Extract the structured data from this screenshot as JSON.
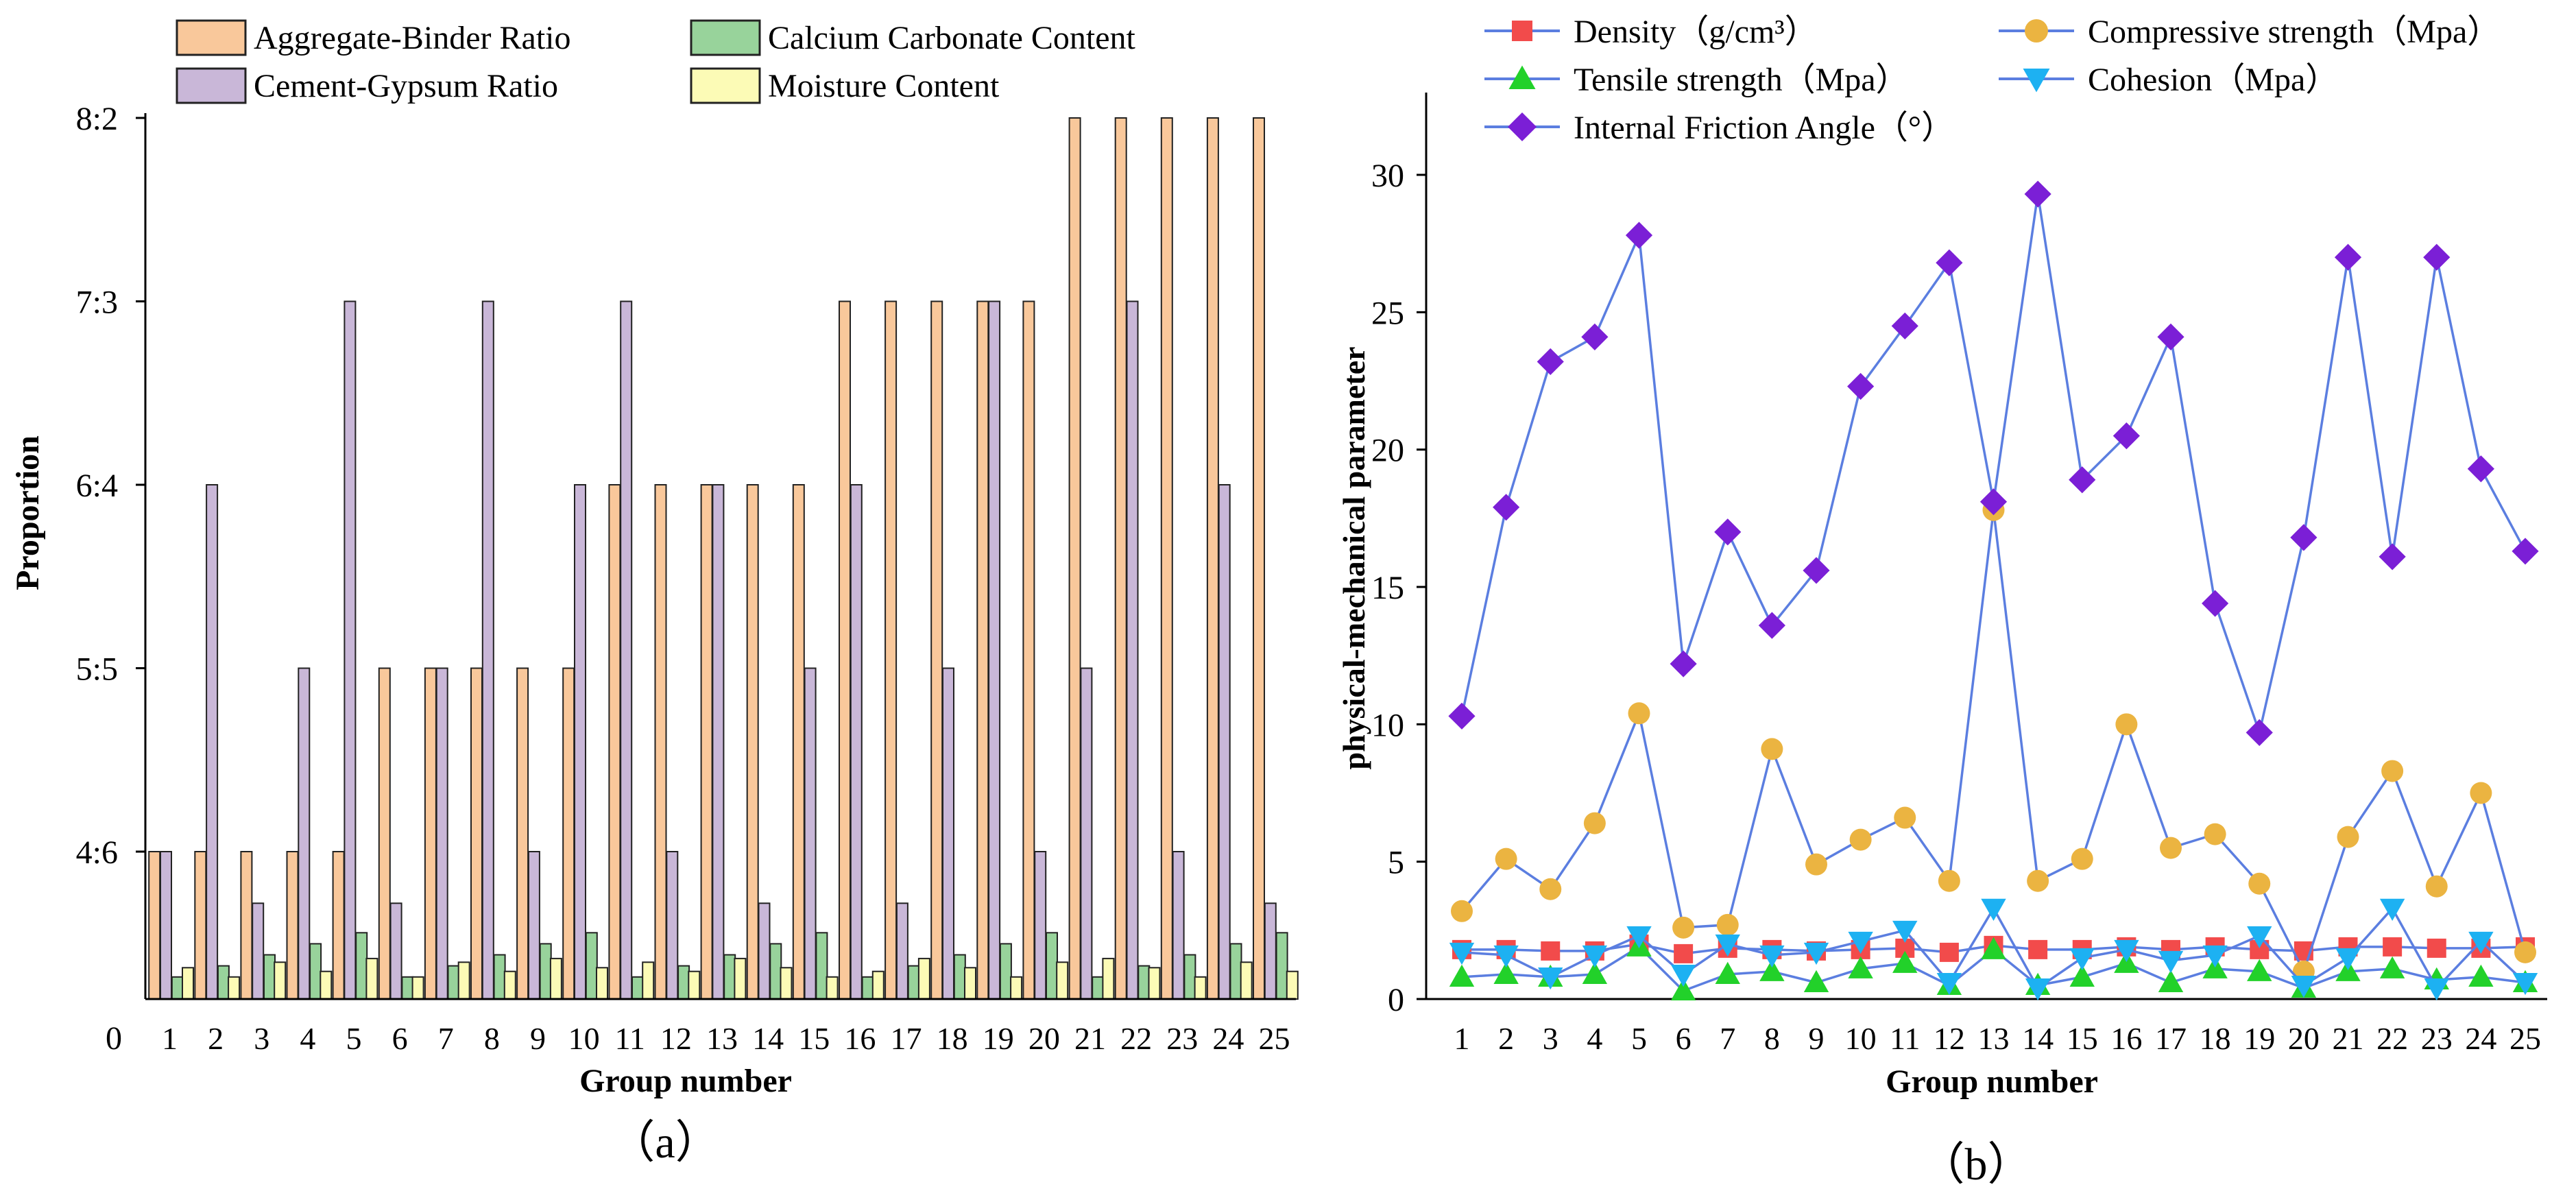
{
  "colors": {
    "aggregate": "#F9C89B",
    "cement": "#C9B7D8",
    "calcium": "#98D39B",
    "moisture": "#FCFBB6",
    "line": "#5B7EE0",
    "density": "#F24B4B",
    "compressive": "#EBB441",
    "tensile": "#22D12A",
    "cohesion": "#1DB1F2",
    "friction": "#7B1FD6"
  },
  "chart_data": [
    {
      "type": "bar",
      "panel_label": "（a）",
      "xlabel": "Group number",
      "ylabel": "Proportion",
      "zero_label": "0",
      "ytick_labels": [
        "4:6",
        "5:5",
        "6:4",
        "7:3",
        "8:2"
      ],
      "ytick_values": [
        4,
        5,
        6,
        7,
        8
      ],
      "categories": [
        "1",
        "2",
        "3",
        "4",
        "5",
        "6",
        "7",
        "8",
        "9",
        "10",
        "11",
        "12",
        "13",
        "14",
        "15",
        "16",
        "17",
        "18",
        "19",
        "20",
        "21",
        "22",
        "23",
        "24",
        "25"
      ],
      "series": [
        {
          "name": "Aggregate-Binder Ratio",
          "color_key": "aggregate",
          "values": [
            4,
            4,
            4,
            4,
            4,
            5,
            5,
            5,
            5,
            5,
            6,
            6,
            6,
            6,
            6,
            7,
            7,
            7,
            7,
            7,
            8,
            8,
            8,
            8,
            8
          ]
        },
        {
          "name": "Cement-Gypsum Ratio",
          "color_key": "cement",
          "values": [
            4,
            6,
            2.6,
            5,
            7,
            2.6,
            5,
            7,
            4,
            6,
            7,
            4,
            6,
            2.6,
            5,
            6,
            2.6,
            5,
            7,
            4,
            5,
            7,
            4,
            6,
            2.6
          ]
        },
        {
          "name": "Calcium Carbonate Content",
          "color_key": "calcium",
          "values": [
            0.6,
            0.9,
            1.2,
            1.5,
            1.8,
            0.6,
            0.9,
            1.2,
            1.5,
            1.8,
            0.6,
            0.9,
            1.2,
            1.5,
            1.8,
            0.6,
            0.9,
            1.2,
            1.5,
            1.8,
            0.6,
            0.9,
            1.2,
            1.5,
            1.8
          ]
        },
        {
          "name": "Moisture Content",
          "color_key": "moisture",
          "values": [
            0.85,
            0.6,
            1.0,
            0.75,
            1.1,
            0.6,
            1.0,
            0.75,
            1.1,
            0.85,
            1.0,
            0.75,
            1.1,
            0.85,
            0.6,
            0.75,
            1.1,
            0.85,
            0.6,
            1.0,
            1.1,
            0.85,
            0.6,
            1.0,
            0.75
          ]
        }
      ],
      "legend": [
        "Aggregate-Binder Ratio",
        "Calcium Carbonate Content",
        "Cement-Gypsum Ratio",
        "Moisture Content"
      ]
    },
    {
      "type": "line",
      "panel_label": "（b）",
      "xlabel": "Group number",
      "ylabel": "physical-mechanical parameter",
      "ylim": [
        0,
        32
      ],
      "yticks": [
        0,
        5,
        10,
        15,
        20,
        25,
        30
      ],
      "x": [
        1,
        2,
        3,
        4,
        5,
        6,
        7,
        8,
        9,
        10,
        11,
        12,
        13,
        14,
        15,
        16,
        17,
        18,
        19,
        20,
        21,
        22,
        23,
        24,
        25
      ],
      "series": [
        {
          "name": "Density（g/cm³）",
          "marker": "square",
          "color_key": "density",
          "values": [
            1.8,
            1.8,
            1.75,
            1.75,
            2.0,
            1.65,
            1.85,
            1.8,
            1.75,
            1.8,
            1.85,
            1.7,
            1.95,
            1.8,
            1.8,
            1.9,
            1.8,
            1.9,
            1.8,
            1.75,
            1.9,
            1.9,
            1.85,
            1.85,
            1.9
          ]
        },
        {
          "name": "Compressive strength（Mpa）",
          "marker": "circle",
          "color_key": "compressive",
          "values": [
            3.2,
            5.1,
            4.0,
            6.4,
            10.4,
            2.6,
            2.7,
            9.1,
            4.9,
            5.8,
            6.6,
            4.3,
            17.8,
            4.3,
            5.1,
            10.0,
            5.5,
            6.0,
            4.2,
            1.0,
            5.9,
            8.3,
            4.1,
            7.5,
            1.7
          ]
        },
        {
          "name": "Tensile strength（Mpa）",
          "marker": "triangle-up",
          "color_key": "tensile",
          "values": [
            0.8,
            0.9,
            0.8,
            0.9,
            1.9,
            0.3,
            0.9,
            1.0,
            0.6,
            1.1,
            1.3,
            0.5,
            1.8,
            0.5,
            0.8,
            1.3,
            0.6,
            1.1,
            1.0,
            0.4,
            1.0,
            1.1,
            0.7,
            0.8,
            0.6
          ]
        },
        {
          "name": "Cohesion（Mpa）",
          "marker": "triangle-down",
          "color_key": "cohesion",
          "values": [
            1.7,
            1.6,
            0.8,
            1.6,
            2.3,
            0.9,
            2.0,
            1.6,
            1.7,
            2.1,
            2.5,
            0.6,
            3.3,
            0.4,
            1.5,
            1.8,
            1.4,
            1.6,
            2.3,
            0.5,
            1.5,
            3.3,
            0.4,
            2.1,
            0.6
          ]
        },
        {
          "name": "Internal Friction Angle（°）",
          "marker": "diamond",
          "color_key": "friction",
          "values": [
            10.3,
            17.9,
            23.2,
            24.1,
            27.8,
            12.2,
            17.0,
            13.6,
            15.6,
            22.3,
            24.5,
            26.8,
            18.1,
            29.3,
            18.9,
            20.5,
            24.1,
            14.4,
            9.7,
            16.8,
            27.0,
            16.1,
            27.0,
            19.3,
            16.3
          ]
        }
      ]
    }
  ]
}
